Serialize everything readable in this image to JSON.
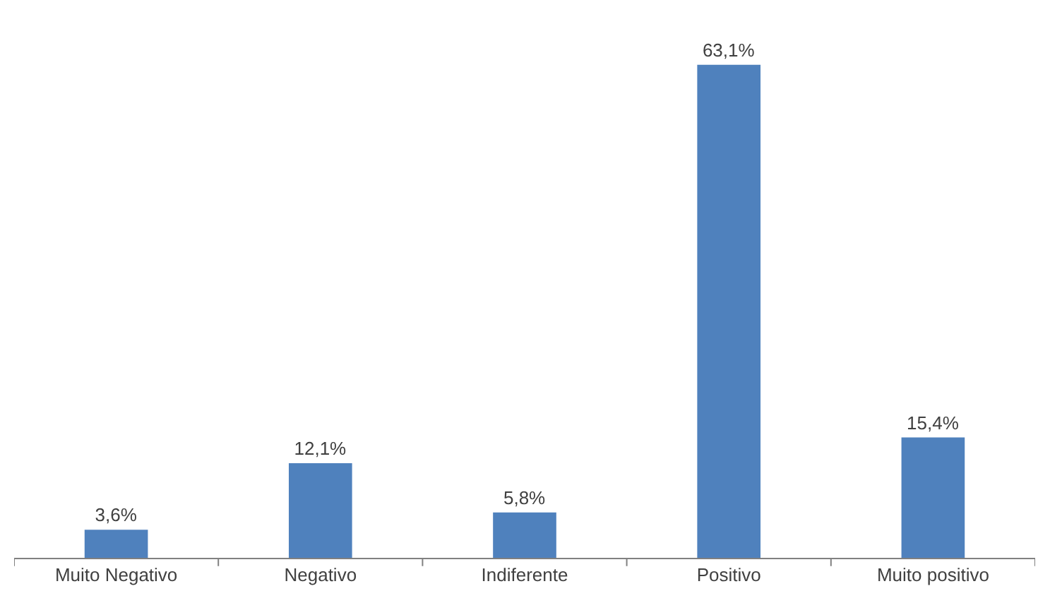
{
  "chart_data": {
    "type": "bar",
    "categories": [
      "Muito Negativo",
      "Negativo",
      "Indiferente",
      "Positivo",
      "Muito positivo"
    ],
    "values": [
      3.6,
      12.1,
      5.8,
      63.1,
      15.4
    ],
    "value_labels": [
      "3,6%",
      "12,1%",
      "5,8%",
      "63,1%",
      "15,4%"
    ],
    "color": "#4f81bd",
    "legend": false
  }
}
